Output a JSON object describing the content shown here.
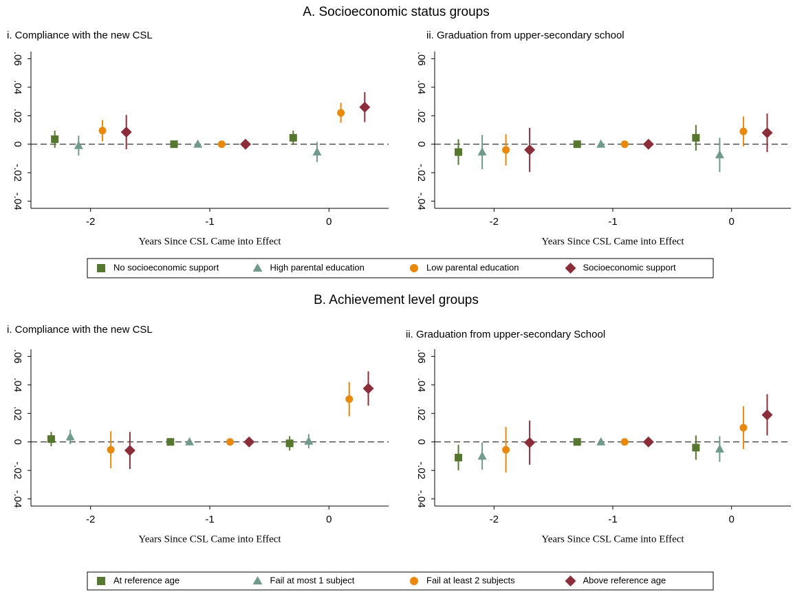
{
  "sections": [
    {
      "title": "A. Socioeconomic status groups",
      "chart_data": [
        {
          "type": "scatter",
          "title": "i. Compliance with the new CSL",
          "xlabel": "Years Since CSL Came into Effect",
          "xlim": [
            -2.5,
            0.5
          ],
          "xticks": [
            -2,
            -1,
            0
          ],
          "ylim": [
            -0.045,
            0.065
          ],
          "yticks": [
            {
              "value": -0.04,
              "label": "-.04"
            },
            {
              "value": -0.02,
              "label": "-.02"
            },
            0,
            {
              "value": 0.02,
              "label": ".02"
            },
            {
              "value": 0.04,
              "label": ".04"
            },
            {
              "value": 0.06,
              "label": ".06"
            }
          ],
          "reference_line": 0,
          "series": [
            {
              "name": "No socioeconomic support",
              "color": "#56772e",
              "marker": "square",
              "x": [
                -2.3,
                -1.3,
                -0.3
              ],
              "values": [
                0.0035,
                0,
                0.0045
              ],
              "errors": [
                0.006,
                0,
                0.005
              ]
            },
            {
              "name": "High parental education",
              "color": "#6f9a8c",
              "marker": "triangle",
              "x": [
                -2.1,
                -1.1,
                -0.1
              ],
              "values": [
                -0.001,
                0,
                -0.0055
              ],
              "errors": [
                0.007,
                0,
                0.007
              ]
            },
            {
              "name": "Low parental education",
              "color": "#e8890c",
              "marker": "circle",
              "x": [
                -1.9,
                -0.9,
                0.1
              ],
              "values": [
                0.0095,
                0,
                0.022
              ],
              "errors": [
                0.0075,
                0,
                0.007
              ]
            },
            {
              "name": "Socioeconomic support",
              "color": "#8b2e3a",
              "marker": "diamond",
              "x": [
                -1.7,
                -0.7,
                0.3
              ],
              "values": [
                0.0085,
                0,
                0.026
              ],
              "errors": [
                0.012,
                0,
                0.0105
              ]
            }
          ]
        },
        {
          "type": "scatter",
          "title": "ii. Graduation from upper-secondary school",
          "xlabel": "Years Since CSL Came into Effect",
          "xlim": [
            -2.5,
            0.5
          ],
          "xticks": [
            -2,
            -1,
            0
          ],
          "ylim": [
            -0.045,
            0.065
          ],
          "yticks": [
            {
              "value": -0.04,
              "label": "-.04"
            },
            {
              "value": -0.02,
              "label": "-.02"
            },
            0,
            {
              "value": 0.02,
              "label": ".02"
            },
            {
              "value": 0.04,
              "label": ".04"
            },
            {
              "value": 0.06,
              "label": ".06"
            }
          ],
          "reference_line": 0,
          "series": [
            {
              "name": "No socioeconomic support",
              "color": "#56772e",
              "marker": "square",
              "x": [
                -2.3,
                -1.3,
                -0.3
              ],
              "values": [
                -0.0055,
                0,
                0.0045
              ],
              "errors": [
                0.009,
                0,
                0.009
              ]
            },
            {
              "name": "High parental education",
              "color": "#6f9a8c",
              "marker": "triangle",
              "x": [
                -2.1,
                -1.1,
                -0.1
              ],
              "values": [
                -0.0055,
                0,
                -0.0075
              ],
              "errors": [
                0.012,
                0,
                0.012
              ]
            },
            {
              "name": "Low parental education",
              "color": "#e8890c",
              "marker": "circle",
              "x": [
                -1.9,
                -0.9,
                0.1
              ],
              "values": [
                -0.004,
                0,
                0.009
              ],
              "errors": [
                0.011,
                0,
                0.0105
              ]
            },
            {
              "name": "Socioeconomic support",
              "color": "#8b2e3a",
              "marker": "diamond",
              "x": [
                -1.7,
                -0.7,
                0.3
              ],
              "values": [
                -0.004,
                0,
                0.008
              ],
              "errors": [
                0.0155,
                0,
                0.0135
              ]
            }
          ]
        }
      ]
    },
    {
      "title": "B. Achievement level groups",
      "chart_data": [
        {
          "type": "scatter",
          "title": "i. Compliance with the new CSL",
          "xlabel": "Years Since CSL Came into Effect",
          "xlim": [
            -2.5,
            0.5
          ],
          "xticks": [
            -2,
            -1,
            0
          ],
          "ylim": [
            -0.045,
            0.065
          ],
          "yticks": [
            {
              "value": -0.04,
              "label": "-.04"
            },
            {
              "value": -0.02,
              "label": "-.02"
            },
            0,
            {
              "value": 0.02,
              "label": ".02"
            },
            {
              "value": 0.04,
              "label": ".04"
            },
            {
              "value": 0.06,
              "label": ".06"
            }
          ],
          "reference_line": 0,
          "series": [
            {
              "name": "At reference age",
              "color": "#56772e",
              "marker": "square",
              "x": [
                -2.33,
                -1.33,
                -0.33
              ],
              "values": [
                0.002,
                0,
                -0.001
              ],
              "errors": [
                0.005,
                0,
                0.005
              ]
            },
            {
              "name": "Fail at most 1 subject",
              "color": "#6f9a8c",
              "marker": "triangle",
              "x": [
                -2.17,
                -1.17,
                -0.17
              ],
              "values": [
                0.0035,
                0,
                0.0005
              ],
              "errors": [
                0.005,
                0,
                0.005
              ]
            },
            {
              "name": "Fail at least 2 subjects",
              "color": "#e8890c",
              "marker": "circle",
              "x": [
                -1.83,
                -0.83,
                0.17
              ],
              "values": [
                -0.0055,
                0,
                0.03
              ],
              "errors": [
                0.013,
                0,
                0.012
              ]
            },
            {
              "name": "Above reference age",
              "color": "#8b2e3a",
              "marker": "diamond",
              "x": [
                -1.67,
                -0.67,
                0.33
              ],
              "values": [
                -0.006,
                0,
                0.0375
              ],
              "errors": [
                0.013,
                0,
                0.012
              ]
            }
          ]
        },
        {
          "type": "scatter",
          "title": "ii. Graduation from upper-secondary School",
          "xlabel": "Years Since CSL Came into Effect",
          "xlim": [
            -2.5,
            0.5
          ],
          "xticks": [
            -2,
            -1,
            0
          ],
          "ylim": [
            -0.045,
            0.065
          ],
          "yticks": [
            {
              "value": -0.04,
              "label": "-.04"
            },
            {
              "value": -0.02,
              "label": "-.02"
            },
            0,
            {
              "value": 0.02,
              "label": ".02"
            },
            {
              "value": 0.04,
              "label": ".04"
            },
            {
              "value": 0.06,
              "label": ".06"
            }
          ],
          "reference_line": 0,
          "series": [
            {
              "name": "At reference age",
              "color": "#56772e",
              "marker": "square",
              "x": [
                -2.3,
                -1.3,
                -0.3
              ],
              "values": [
                -0.011,
                0,
                -0.004
              ],
              "errors": [
                0.009,
                0,
                0.0085
              ]
            },
            {
              "name": "Fail at most 1 subject",
              "color": "#6f9a8c",
              "marker": "triangle",
              "x": [
                -2.1,
                -1.1,
                -0.1
              ],
              "values": [
                -0.01,
                0,
                -0.005
              ],
              "errors": [
                0.0095,
                0,
                0.009
              ]
            },
            {
              "name": "Fail at least 2 subjects",
              "color": "#e8890c",
              "marker": "circle",
              "x": [
                -1.9,
                -0.9,
                0.1
              ],
              "values": [
                -0.0055,
                0,
                0.01
              ],
              "errors": [
                0.016,
                0,
                0.015
              ]
            },
            {
              "name": "Above reference age",
              "color": "#8b2e3a",
              "marker": "diamond",
              "x": [
                -1.7,
                -0.7,
                0.3
              ],
              "values": [
                -0.0005,
                0,
                0.019
              ],
              "errors": [
                0.0155,
                0,
                0.0145
              ]
            }
          ]
        }
      ]
    }
  ]
}
